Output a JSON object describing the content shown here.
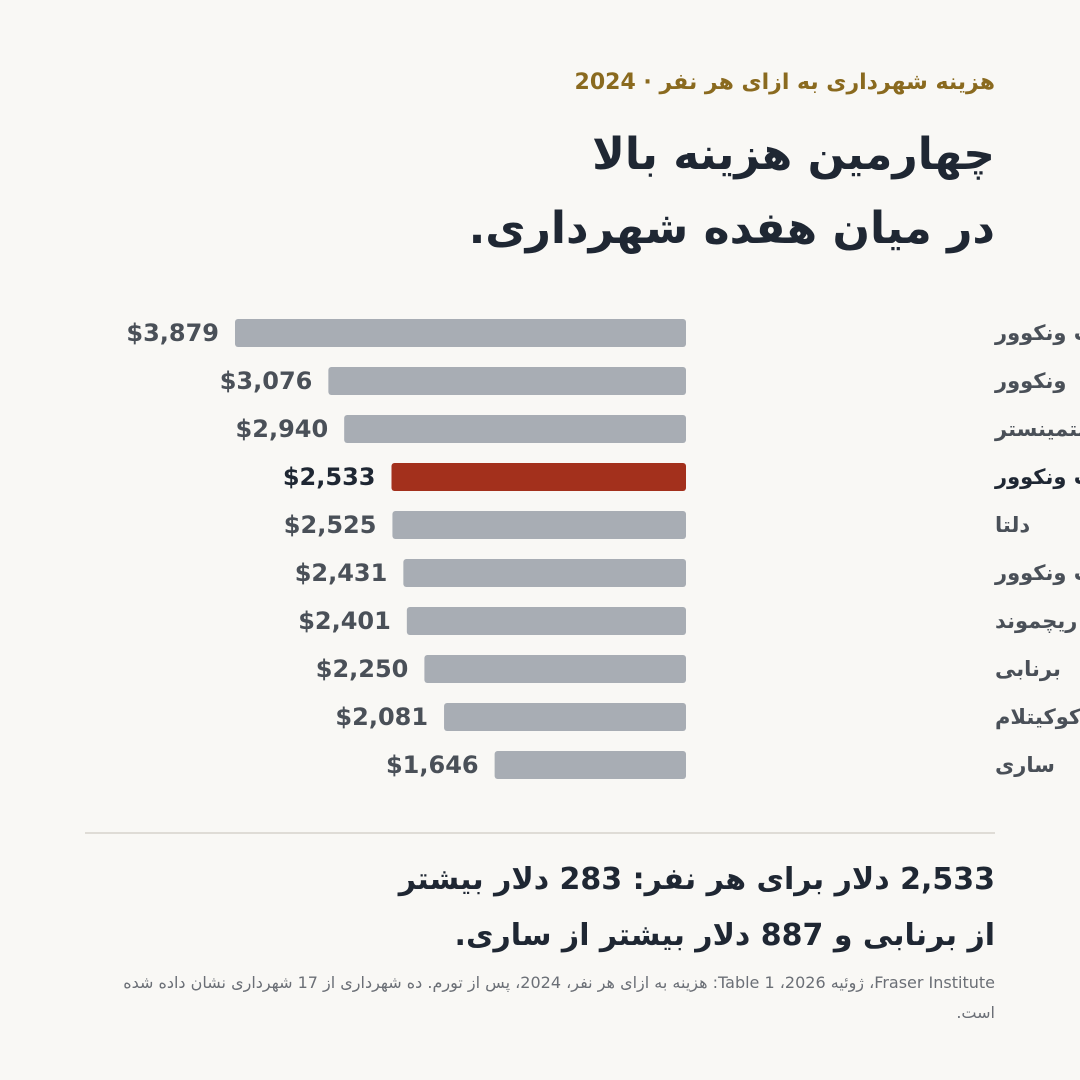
{
  "header": {
    "eyebrow": "هزینه شهرداری به ازای هر نفر · 2024",
    "title_line1": "چهارمین هزینه بالا",
    "title_line2": "در میان هفده شهرداری."
  },
  "summary": {
    "line1": "2,533 دلار برای هر نفر: 283 دلار بیشتر",
    "line2": "از برنابی و 887 دلار بیشتر از ساری."
  },
  "source": "Fraser Institute، ژوئیه 2026، Table 1: هزینه به ازای هر نفر، 2024، پس از تورم. ده شهرداری از 17 شهرداری نشان داده شده است.",
  "colors": {
    "bar_default": "#a8adb4",
    "bar_highlight": "#a3301c",
    "label_default": "#4a5058",
    "label_highlight": "#1f2733"
  },
  "chart_data": {
    "type": "bar",
    "orientation": "horizontal",
    "categories": [
      "وست ونکوور",
      "ونکوور",
      "نیو وستمینستر",
      "دیستریکت نورث ونکوور",
      "دلتا",
      "شهر نورث ونکوور",
      "ریچموند",
      "برنابی",
      "کوکیتلام",
      "ساری"
    ],
    "values": [
      3879,
      3076,
      2940,
      2533,
      2525,
      2431,
      2401,
      2250,
      2081,
      1646
    ],
    "value_labels": [
      "$3,879",
      "$3,076",
      "$2,940",
      "$2,533",
      "$2,525",
      "$2,431",
      "$2,401",
      "$2,250",
      "$2,081",
      "$1,646"
    ],
    "highlight_index": 3,
    "xlim": [
      0,
      3879
    ],
    "grid": false,
    "legend": "none"
  }
}
